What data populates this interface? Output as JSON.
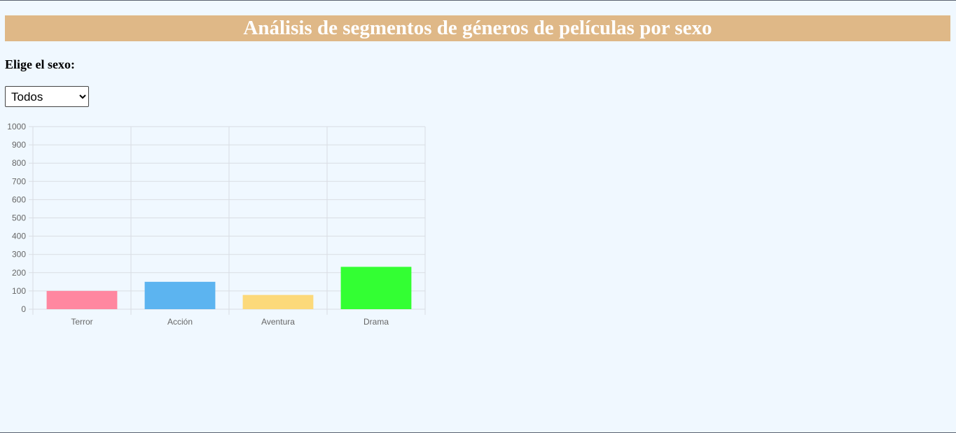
{
  "header": {
    "title": "Análisis de segmentos de géneros de películas por sexo"
  },
  "filter": {
    "label": "Elige el sexo:",
    "selected": "Todos",
    "options": [
      "Todos"
    ]
  },
  "chart_data": {
    "type": "bar",
    "title": "",
    "xlabel": "",
    "ylabel": "",
    "categories": [
      "Terror",
      "Acción",
      "Aventura",
      "Drama"
    ],
    "values": [
      100,
      150,
      78,
      232
    ],
    "colors": [
      "#ff87a0",
      "#5cb4f0",
      "#fcd97a",
      "#33ff33"
    ],
    "ylim": [
      0,
      1000
    ],
    "yticks": [
      0,
      100,
      200,
      300,
      400,
      500,
      600,
      700,
      800,
      900,
      1000
    ],
    "grid": true,
    "legend": "none"
  }
}
